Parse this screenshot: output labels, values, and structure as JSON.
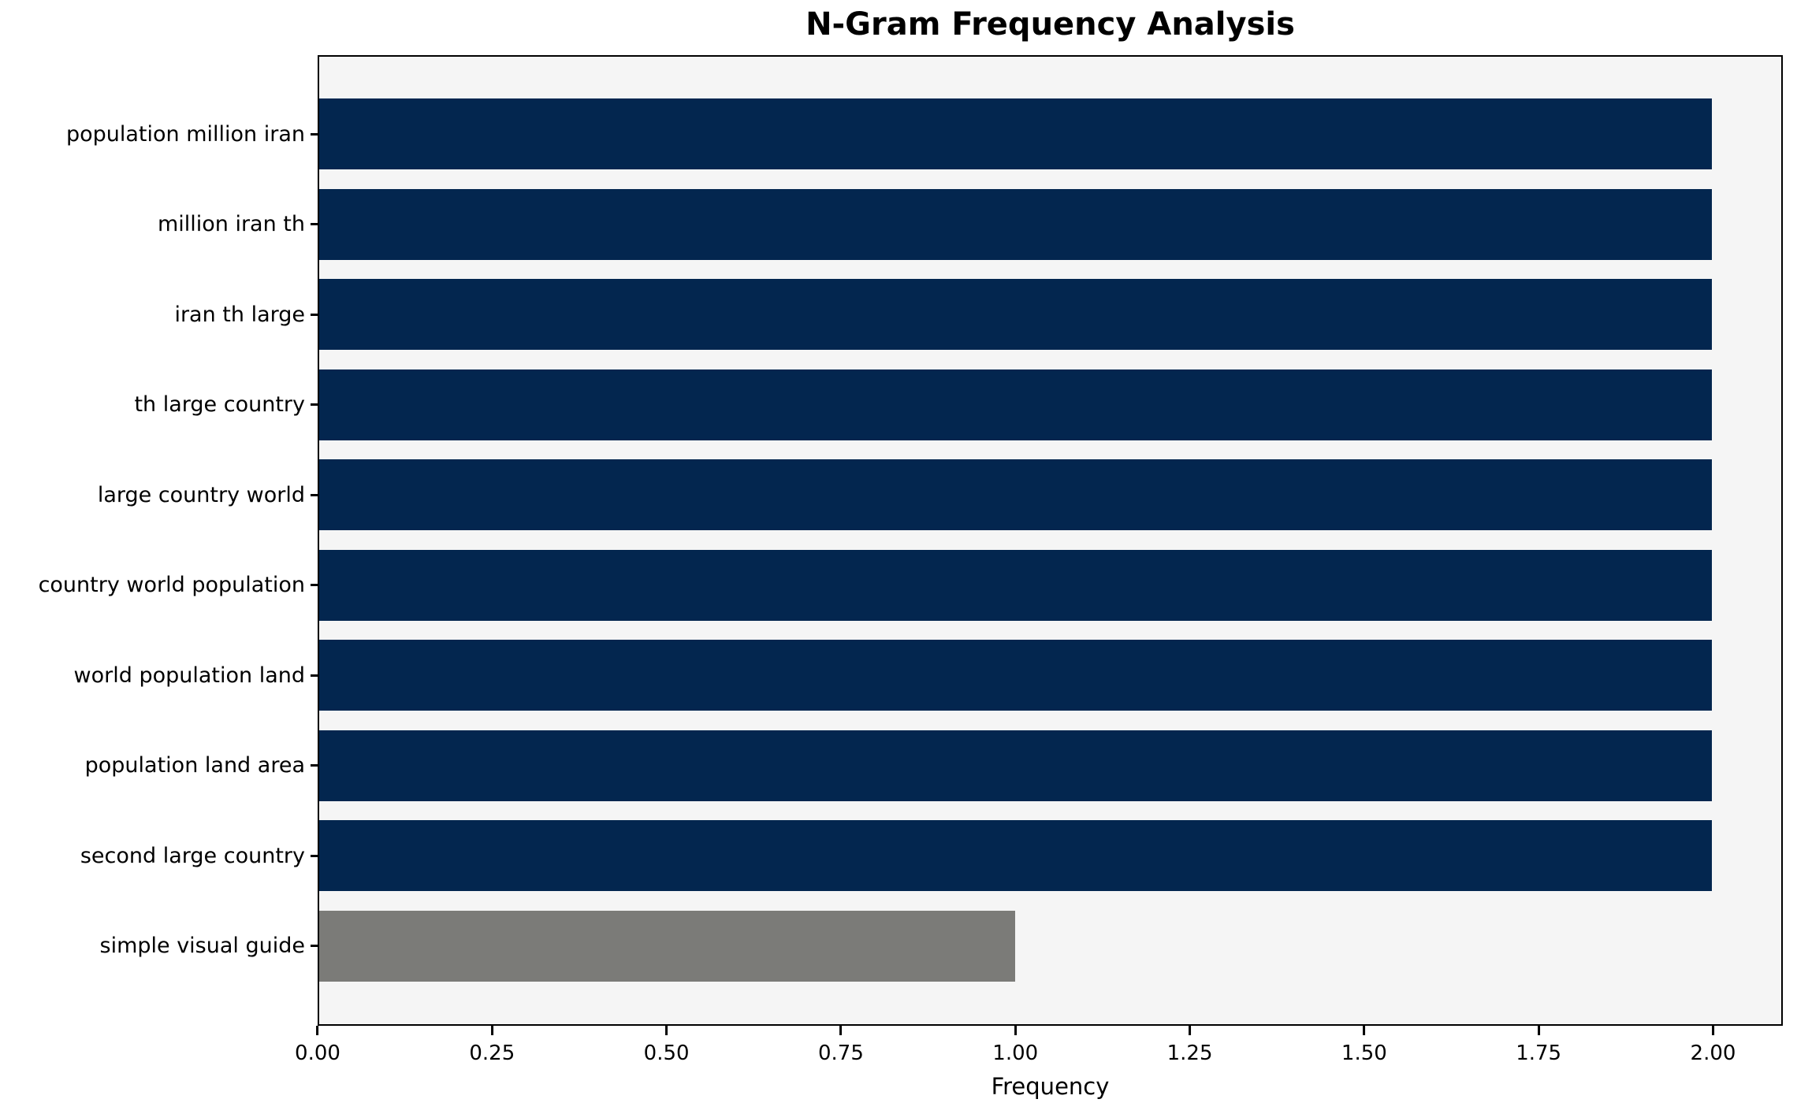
{
  "chart_data": {
    "type": "bar",
    "orientation": "horizontal",
    "title": "N-Gram Frequency Analysis",
    "xlabel": "Frequency",
    "ylabel": "",
    "categories": [
      "population million iran",
      "million iran th",
      "iran th large",
      "th large country",
      "large country world",
      "country world population",
      "world population land",
      "population land area",
      "second large country",
      "simple visual guide"
    ],
    "values": [
      2,
      2,
      2,
      2,
      2,
      2,
      2,
      2,
      2,
      1
    ],
    "bar_colors": [
      "#03264f",
      "#03264f",
      "#03264f",
      "#03264f",
      "#03264f",
      "#03264f",
      "#03264f",
      "#03264f",
      "#03264f",
      "#7b7b78"
    ],
    "xlim": [
      0,
      2.1
    ],
    "xticks": [
      "0.00",
      "0.25",
      "0.50",
      "0.75",
      "1.00",
      "1.25",
      "1.50",
      "1.75",
      "2.00"
    ],
    "legend": "none",
    "grid": "off",
    "colors": {
      "bar_primary": "#03264f",
      "bar_secondary": "#7b7b78",
      "plot_background": "#f5f5f5",
      "figure_background": "#ffffff",
      "spine": "#000000",
      "text": "#000000"
    }
  }
}
